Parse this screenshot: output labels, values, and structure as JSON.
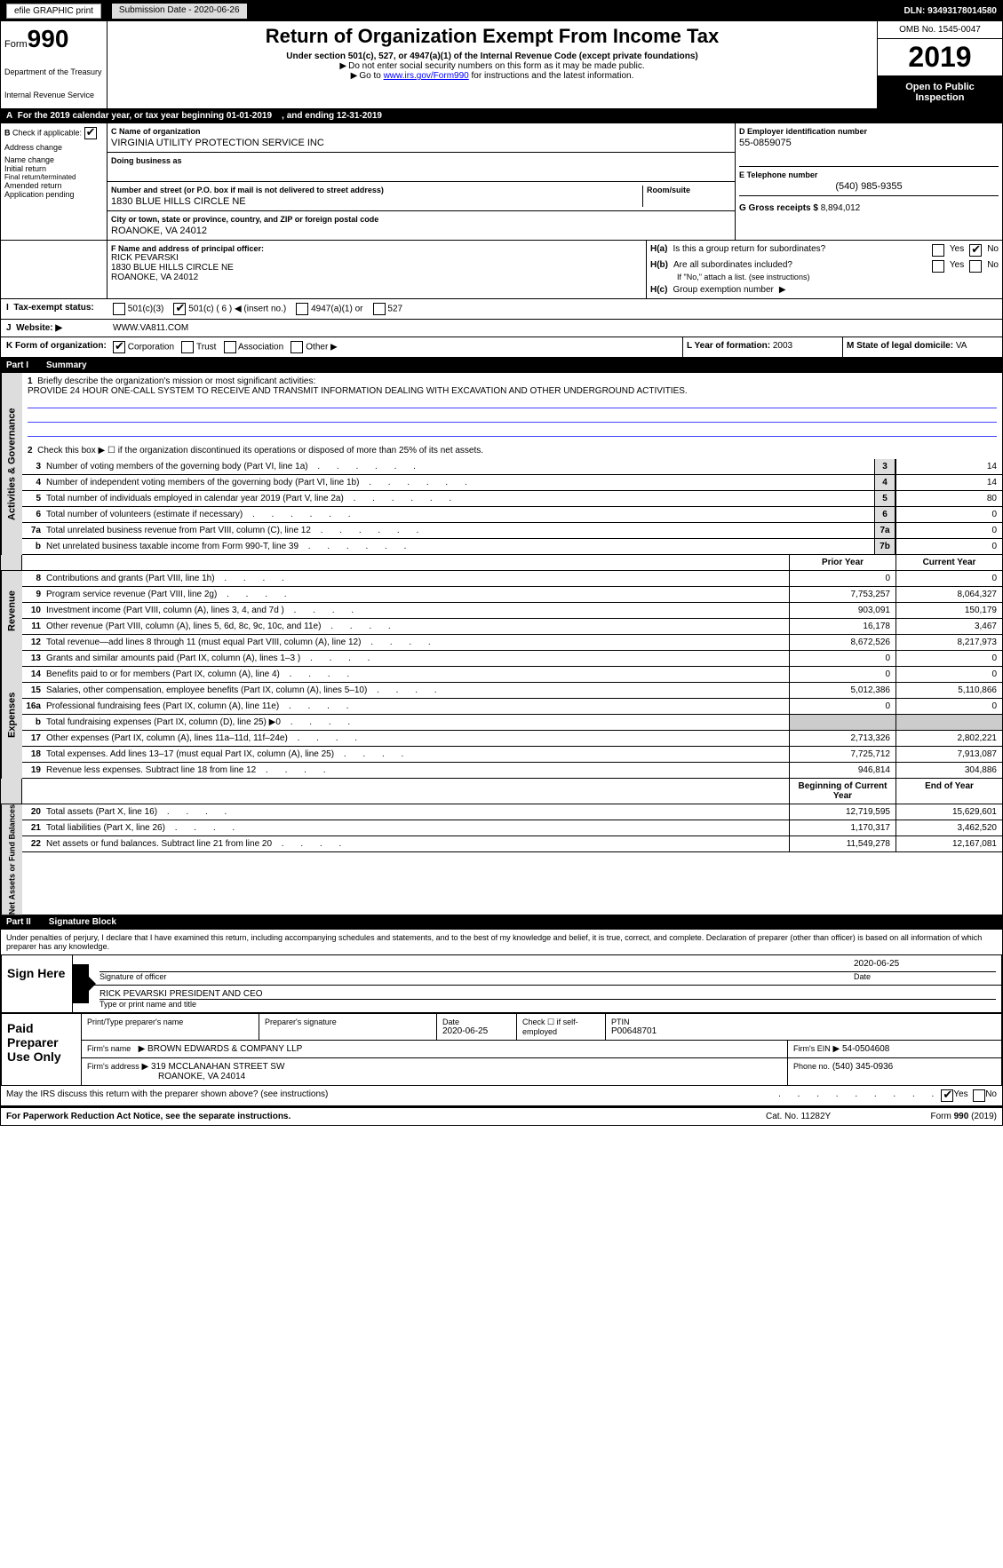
{
  "header": {
    "efile_label": "efile GRAPHIC print",
    "sub_date_label": "Submission Date - 2020-06-26",
    "dln_label": "DLN: 93493178014580"
  },
  "titleblock": {
    "form_prefix": "Form",
    "form_number": "990",
    "dept": "Department of the Treasury",
    "irs": "Internal Revenue Service",
    "title": "Return of Organization Exempt From Income Tax",
    "sub": "Under section 501(c), 527, or 4947(a)(1) of the Internal Revenue Code (except private foundations)",
    "note1": "Do not enter social security numbers on this form as it may be made public.",
    "note2_prefix": "Go to ",
    "note2_link": "www.irs.gov/Form990",
    "note2_suffix": " for instructions and the latest information.",
    "omb": "OMB No. 1545-0047",
    "year": "2019",
    "open_pub": "Open to Public Inspection"
  },
  "row_a": {
    "text": "For the 2019 calendar year, or tax year beginning 01-01-2019",
    "ending": ", and ending 12-31-2019"
  },
  "section_b": {
    "label": "Check if applicable:",
    "items": [
      "Address change",
      "Name change",
      "Initial return",
      "Final return/terminated",
      "Amended return",
      "Application pending"
    ],
    "checked": [
      true,
      false,
      false,
      false,
      false,
      false
    ]
  },
  "section_c": {
    "name_label": "C Name of organization",
    "name": "VIRGINIA UTILITY PROTECTION SERVICE INC",
    "dba_label": "Doing business as",
    "dba": "",
    "addr_label": "Number and street (or P.O. box if mail is not delivered to street address)",
    "addr": "1830 BLUE HILLS CIRCLE NE",
    "room_label": "Room/suite",
    "city_label": "City or town, state or province, country, and ZIP or foreign postal code",
    "city": "ROANOKE, VA  24012"
  },
  "section_d": {
    "label": "D Employer identification number",
    "value": "55-0859075"
  },
  "section_e": {
    "label": "E Telephone number",
    "value": "(540) 985-9355"
  },
  "section_g": {
    "label": "G Gross receipts $",
    "value": "8,894,012"
  },
  "section_f": {
    "label": "F  Name and address of principal officer:",
    "name": "RICK PEVARSKI",
    "addr1": "1830 BLUE HILLS CIRCLE NE",
    "addr2": "ROANOKE, VA  24012"
  },
  "section_h": {
    "ha_label": "Is this a group return for subordinates?",
    "ha_yes": false,
    "ha_no": true,
    "hb_label": "Are all subordinates included?",
    "hb_note": "If \"No,\" attach a list. (see instructions)",
    "hc_label": "Group exemption number"
  },
  "row_i": {
    "label": "Tax-exempt status:",
    "opts": [
      "501(c)(3)",
      "501(c) ( 6 ) ◀ (insert no.)",
      "4947(a)(1) or",
      "527"
    ],
    "checked": [
      false,
      true,
      false,
      false
    ]
  },
  "row_j": {
    "label": "Website:",
    "value": "WWW.VA811.COM"
  },
  "row_k": {
    "label": "Form of organization:",
    "opts": [
      "Corporation",
      "Trust",
      "Association",
      "Other"
    ],
    "checked": [
      true,
      false,
      false,
      false
    ]
  },
  "row_l": {
    "label": "L Year of formation:",
    "value": "2003"
  },
  "row_m": {
    "label": "M State of legal domicile:",
    "value": "VA"
  },
  "part1": {
    "num": "Part I",
    "title": "Summary"
  },
  "activities": {
    "side_label": "Activities & Governance",
    "line1_label": "Briefly describe the organization's mission or most significant activities:",
    "line1_text": "PROVIDE 24 HOUR ONE-CALL SYSTEM TO RECEIVE AND TRANSMIT INFORMATION DEALING WITH EXCAVATION AND OTHER UNDERGROUND ACTIVITIES.",
    "line2": "Check this box ▶ ☐  if the organization discontinued its operations or disposed of more than 25% of its net assets.",
    "rows": [
      {
        "n": "3",
        "t": "Number of voting members of the governing body (Part VI, line 1a)",
        "box": "3",
        "v": "14"
      },
      {
        "n": "4",
        "t": "Number of independent voting members of the governing body (Part VI, line 1b)",
        "box": "4",
        "v": "14"
      },
      {
        "n": "5",
        "t": "Total number of individuals employed in calendar year 2019 (Part V, line 2a)",
        "box": "5",
        "v": "80"
      },
      {
        "n": "6",
        "t": "Total number of volunteers (estimate if necessary)",
        "box": "6",
        "v": "0"
      },
      {
        "n": "7a",
        "t": "Total unrelated business revenue from Part VIII, column (C), line 12",
        "box": "7a",
        "v": "0"
      },
      {
        "n": "b",
        "t": "Net unrelated business taxable income from Form 990-T, line 39",
        "box": "7b",
        "v": "0"
      }
    ]
  },
  "twocol_header": {
    "prior": "Prior Year",
    "current": "Current Year"
  },
  "revenue": {
    "side_label": "Revenue",
    "rows": [
      {
        "n": "8",
        "t": "Contributions and grants (Part VIII, line 1h)",
        "p": "0",
        "c": "0"
      },
      {
        "n": "9",
        "t": "Program service revenue (Part VIII, line 2g)",
        "p": "7,753,257",
        "c": "8,064,327"
      },
      {
        "n": "10",
        "t": "Investment income (Part VIII, column (A), lines 3, 4, and 7d )",
        "p": "903,091",
        "c": "150,179"
      },
      {
        "n": "11",
        "t": "Other revenue (Part VIII, column (A), lines 5, 6d, 8c, 9c, 10c, and 11e)",
        "p": "16,178",
        "c": "3,467"
      },
      {
        "n": "12",
        "t": "Total revenue—add lines 8 through 11 (must equal Part VIII, column (A), line 12)",
        "p": "8,672,526",
        "c": "8,217,973"
      }
    ]
  },
  "expenses": {
    "side_label": "Expenses",
    "rows": [
      {
        "n": "13",
        "t": "Grants and similar amounts paid (Part IX, column (A), lines 1–3 )",
        "p": "0",
        "c": "0"
      },
      {
        "n": "14",
        "t": "Benefits paid to or for members (Part IX, column (A), line 4)",
        "p": "0",
        "c": "0"
      },
      {
        "n": "15",
        "t": "Salaries, other compensation, employee benefits (Part IX, column (A), lines 5–10)",
        "p": "5,012,386",
        "c": "5,110,866"
      },
      {
        "n": "16a",
        "t": "Professional fundraising fees (Part IX, column (A), line 11e)",
        "p": "0",
        "c": "0"
      },
      {
        "n": "b",
        "t": "Total fundraising expenses (Part IX, column (D), line 25) ▶0",
        "p": "",
        "c": "",
        "shade": true
      },
      {
        "n": "17",
        "t": "Other expenses (Part IX, column (A), lines 11a–11d, 11f–24e)",
        "p": "2,713,326",
        "c": "2,802,221"
      },
      {
        "n": "18",
        "t": "Total expenses. Add lines 13–17 (must equal Part IX, column (A), line 25)",
        "p": "7,725,712",
        "c": "7,913,087"
      },
      {
        "n": "19",
        "t": "Revenue less expenses. Subtract line 18 from line 12",
        "p": "946,814",
        "c": "304,886"
      }
    ]
  },
  "netassets_header": {
    "begin": "Beginning of Current Year",
    "end": "End of Year"
  },
  "netassets": {
    "side_label": "Net Assets or Fund Balances",
    "rows": [
      {
        "n": "20",
        "t": "Total assets (Part X, line 16)",
        "p": "12,719,595",
        "c": "15,629,601"
      },
      {
        "n": "21",
        "t": "Total liabilities (Part X, line 26)",
        "p": "1,170,317",
        "c": "3,462,520"
      },
      {
        "n": "22",
        "t": "Net assets or fund balances. Subtract line 21 from line 20",
        "p": "11,549,278",
        "c": "12,167,081"
      }
    ]
  },
  "part2": {
    "num": "Part II",
    "title": "Signature Block"
  },
  "perjury": "Under penalties of perjury, I declare that I have examined this return, including accompanying schedules and statements, and to the best of my knowledge and belief, it is true, correct, and complete. Declaration of preparer (other than officer) is based on all information of which preparer has any knowledge.",
  "sign": {
    "label": "Sign Here",
    "sig_label": "Signature of officer",
    "date_label": "Date",
    "date": "2020-06-25",
    "name": "RICK PEVARSKI PRESIDENT AND CEO",
    "name_label": "Type or print name and title"
  },
  "preparer": {
    "label": "Paid Preparer Use Only",
    "c1": "Print/Type preparer's name",
    "c2": "Preparer's signature",
    "c3_label": "Date",
    "c3": "2020-06-25",
    "c4_label": "Check ☐ if self-employed",
    "c5_label": "PTIN",
    "c5": "P00648701",
    "firm_name_label": "Firm's name",
    "firm_name": "BROWN EDWARDS & COMPANY LLP",
    "firm_ein_label": "Firm's EIN",
    "firm_ein": "54-0504608",
    "firm_addr_label": "Firm's address",
    "firm_addr1": "319 MCCLANAHAN STREET SW",
    "firm_addr2": "ROANOKE, VA  24014",
    "phone_label": "Phone no.",
    "phone": "(540) 345-0936"
  },
  "discuss": {
    "text": "May the IRS discuss this return with the preparer shown above? (see instructions)",
    "yes_checked": true
  },
  "footer": {
    "left": "For Paperwork Reduction Act Notice, see the separate instructions.",
    "center": "Cat. No. 11282Y",
    "right": "Form 990 (2019)"
  },
  "colors": {
    "black": "#000000",
    "shade": "#dddddd",
    "blue": "#0000ee"
  }
}
